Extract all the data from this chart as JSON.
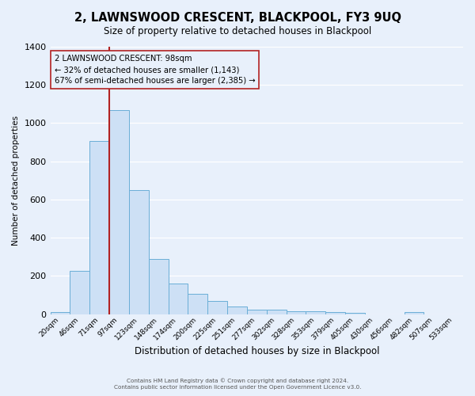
{
  "title": "2, LAWNSWOOD CRESCENT, BLACKPOOL, FY3 9UQ",
  "subtitle": "Size of property relative to detached houses in Blackpool",
  "xlabel": "Distribution of detached houses by size in Blackpool",
  "ylabel": "Number of detached properties",
  "bar_labels": [
    "20sqm",
    "46sqm",
    "71sqm",
    "97sqm",
    "123sqm",
    "148sqm",
    "174sqm",
    "200sqm",
    "225sqm",
    "251sqm",
    "277sqm",
    "302sqm",
    "328sqm",
    "353sqm",
    "379sqm",
    "405sqm",
    "430sqm",
    "456sqm",
    "482sqm",
    "507sqm",
    "533sqm"
  ],
  "bar_heights": [
    10,
    225,
    905,
    1070,
    650,
    290,
    160,
    107,
    70,
    40,
    22,
    22,
    15,
    15,
    10,
    5,
    0,
    0,
    10,
    0,
    0
  ],
  "bar_color": "#cde0f5",
  "bar_edge_color": "#6aaed6",
  "background_color": "#e8f0fb",
  "grid_color": "#ffffff",
  "vline_x_index": 3,
  "vline_color": "#b22222",
  "annotation_title": "2 LAWNSWOOD CRESCENT: 98sqm",
  "annotation_line1": "← 32% of detached houses are smaller (1,143)",
  "annotation_line2": "67% of semi-detached houses are larger (2,385) →",
  "annotation_box_edge": "#b22222",
  "ylim": [
    0,
    1400
  ],
  "yticks": [
    0,
    200,
    400,
    600,
    800,
    1000,
    1200,
    1400
  ],
  "footer1": "Contains HM Land Registry data © Crown copyright and database right 2024.",
  "footer2": "Contains public sector information licensed under the Open Government Licence v3.0."
}
